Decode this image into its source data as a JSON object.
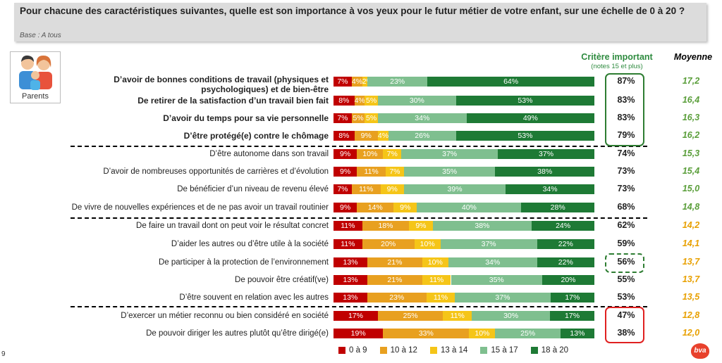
{
  "header": {
    "question": "Pour chacune des caractéristiques suivantes, quelle est son importance à vos yeux pour le futur métier de votre enfant, sur une échelle de 0 à 20 ?",
    "base": "Base : A tous"
  },
  "parents_label": "Parents",
  "columns": {
    "important": "Critère important",
    "important_sub": "(notes 15 et plus)",
    "average": "Moyenne"
  },
  "page_number": "9",
  "logo_text": "bva",
  "colors": {
    "c0_9": "#c00000",
    "c10_12": "#e8a020",
    "c13_14": "#f5c518",
    "c15_17": "#7fbf8f",
    "c18_20": "#1e7a35",
    "avg_green": "#5a9e3a",
    "avg_orange": "#e8a000"
  },
  "chart_data": {
    "type": "bar",
    "stacked": true,
    "orientation": "horizontal",
    "legend_position": "bottom",
    "legend": [
      "0 à 9",
      "10 à 12",
      "13 à 14",
      "15 à 17",
      "18 à 20"
    ],
    "rows": [
      {
        "label": "D’avoir de bonnes conditions de travail (physiques et psychologiques) et de bien-être",
        "bold": true,
        "values": [
          7,
          4,
          2,
          23,
          64
        ],
        "labels": [
          "7%",
          "4%",
          "2%",
          "23%",
          "64%"
        ],
        "important": "87%",
        "average": "17,2",
        "avg_color": "green"
      },
      {
        "label": "De retirer de la satisfaction d’un travail bien fait",
        "bold": true,
        "values": [
          8,
          4,
          5,
          30,
          53
        ],
        "labels": [
          "8%",
          "4%",
          "5%",
          "30%",
          "53%"
        ],
        "important": "83%",
        "average": "16,4",
        "avg_color": "green"
      },
      {
        "label": "D’avoir du temps pour sa vie personnelle",
        "bold": true,
        "values": [
          7,
          5,
          5,
          34,
          49
        ],
        "labels": [
          "7%",
          "5%",
          "5%",
          "34%",
          "49%"
        ],
        "important": "83%",
        "average": "16,3",
        "avg_color": "green"
      },
      {
        "label": "D’être protégé(e) contre le chômage",
        "bold": true,
        "values": [
          8,
          9,
          4,
          26,
          53
        ],
        "labels": [
          "8%",
          "9%",
          "4%",
          "26%",
          "53%"
        ],
        "important": "79%",
        "average": "16,2",
        "avg_color": "green"
      },
      {
        "label": "D’être autonome dans son travail",
        "bold": false,
        "values": [
          9,
          10,
          7,
          37,
          37
        ],
        "labels": [
          "9%",
          "10%",
          "7%",
          "37%",
          "37%"
        ],
        "important": "74%",
        "average": "15,3",
        "avg_color": "green"
      },
      {
        "label": "D’avoir de nombreuses opportunités de carrières et d’évolution",
        "bold": false,
        "values": [
          9,
          11,
          7,
          35,
          38
        ],
        "labels": [
          "9%",
          "11%",
          "7%",
          "35%",
          "38%"
        ],
        "important": "73%",
        "average": "15,4",
        "avg_color": "green"
      },
      {
        "label": "De bénéficier d’un niveau de revenu élevé",
        "bold": false,
        "values": [
          7,
          11,
          9,
          39,
          34
        ],
        "labels": [
          "7%",
          "11%",
          "9%",
          "39%",
          "34%"
        ],
        "important": "73%",
        "average": "15,0",
        "avg_color": "green"
      },
      {
        "label": "De vivre de nouvelles expériences et de ne pas avoir un travail routinier",
        "bold": false,
        "values": [
          9,
          14,
          9,
          40,
          28
        ],
        "labels": [
          "9%",
          "14%",
          "9%",
          "40%",
          "28%"
        ],
        "important": "68%",
        "average": "14,8",
        "avg_color": "green"
      },
      {
        "label": "De faire un travail dont on peut voir le résultat concret",
        "bold": false,
        "values": [
          11,
          18,
          9,
          38,
          24
        ],
        "labels": [
          "11%",
          "18%",
          "9%",
          "38%",
          "24%"
        ],
        "important": "62%",
        "average": "14,2",
        "avg_color": "orange"
      },
      {
        "label": "D’aider les autres ou d’être utile à la société",
        "bold": false,
        "values": [
          11,
          20,
          10,
          37,
          22
        ],
        "labels": [
          "11%",
          "20%",
          "10%",
          "37%",
          "22%"
        ],
        "important": "59%",
        "average": "14,1",
        "avg_color": "orange"
      },
      {
        "label": "De participer à la protection de l’environnement",
        "bold": false,
        "values": [
          13,
          21,
          10,
          34,
          22
        ],
        "labels": [
          "13%",
          "21%",
          "10%",
          "34%",
          "22%"
        ],
        "important": "56%",
        "average": "13,7",
        "avg_color": "orange"
      },
      {
        "label": "De pouvoir être créatif(ve)",
        "bold": false,
        "values": [
          13,
          21,
          11,
          35,
          20
        ],
        "labels": [
          "13%",
          "21%",
          "11%",
          "35%",
          "20%"
        ],
        "important": "55%",
        "average": "13,7",
        "avg_color": "orange"
      },
      {
        "label": "D’être souvent en relation avec les autres",
        "bold": false,
        "values": [
          13,
          23,
          11,
          37,
          17
        ],
        "labels": [
          "13%",
          "23%",
          "11%",
          "37%",
          "17%"
        ],
        "important": "53%",
        "average": "13,5",
        "avg_color": "orange"
      },
      {
        "label": "D’exercer un métier reconnu ou bien considéré en société",
        "bold": false,
        "values": [
          17,
          25,
          11,
          30,
          17
        ],
        "labels": [
          "17%",
          "25%",
          "11%",
          "30%",
          "17%"
        ],
        "important": "47%",
        "average": "12,8",
        "avg_color": "orange"
      },
      {
        "label": "De pouvoir diriger les autres plutôt qu’être dirigé(e)",
        "bold": false,
        "values": [
          19,
          33,
          10,
          25,
          13
        ],
        "labels": [
          "19%",
          "33%",
          "10%",
          "25%",
          "13%"
        ],
        "important": "38%",
        "average": "12,0",
        "avg_color": "orange"
      }
    ]
  }
}
